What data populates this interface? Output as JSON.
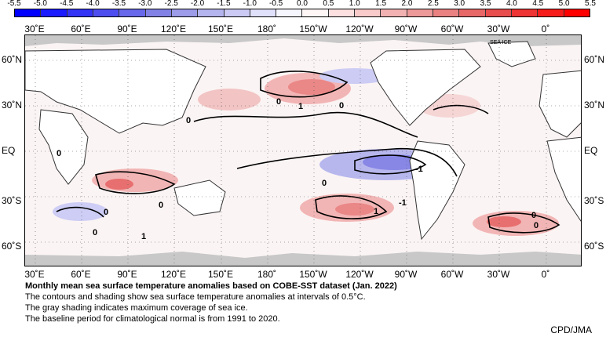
{
  "colorbar": {
    "ticks": [
      "-5.5",
      "-5.0",
      "-4.5",
      "-4.0",
      "-3.5",
      "-3.0",
      "-2.5",
      "-2.0",
      "-1.5",
      "-1.0",
      "-0.5",
      "0.0",
      "0.5",
      "1.0",
      "1.5",
      "2.0",
      "2.5",
      "3.0",
      "3.5",
      "4.0",
      "4.5",
      "5.0",
      "5.5"
    ],
    "colors": [
      "#0000ff",
      "#1b1bff",
      "#3434f6",
      "#4e4ef0",
      "#6868ea",
      "#8282e6",
      "#9c9ce8",
      "#b4b4ee",
      "#cacaf4",
      "#e0e0fa",
      "#f6f6fe",
      "#fff6f6",
      "#fde0e0",
      "#f8caca",
      "#f2b2b2",
      "#ee9a9a",
      "#ea8282",
      "#e86868",
      "#e84e4e",
      "#ee3434",
      "#f61c1c",
      "#ff0000"
    ]
  },
  "map": {
    "lon_labels_top": [
      "30˚E",
      "60˚E",
      "90˚E",
      "120˚E",
      "150˚E",
      "180˚",
      "150˚W",
      "120˚W",
      "90˚W",
      "60˚W",
      "30˚W",
      "0˚"
    ],
    "lon_labels_bottom": [
      "30˚E",
      "60˚E",
      "90˚E",
      "120˚E",
      "150˚E",
      "180˚",
      "150˚W",
      "120˚W",
      "90˚W",
      "60˚W",
      "30˚W",
      "0˚"
    ],
    "lat_labels_left": [
      "60˚N",
      "30˚N",
      "EQ",
      "30˚S",
      "60˚S"
    ],
    "lat_labels_right": [
      "60˚N",
      "30˚N",
      "EQ",
      "30˚S",
      "60˚S"
    ],
    "sea_ice_label": "SEA ICE",
    "contour_labels": [
      "0",
      "1",
      "0",
      "0",
      "0",
      "0",
      "0",
      "-1",
      "-1",
      "0",
      "1",
      "0",
      "0",
      "1",
      "0"
    ],
    "colors": {
      "land": "#ffffff",
      "sea_ice": "#c8c8c8",
      "warm": "#e8787a",
      "cool": "#7a7ae4"
    }
  },
  "caption": {
    "title": "Monthly mean sea surface temperature anomalies based on COBE-SST dataset (Jan. 2022)",
    "line1": "The contours and shading show sea surface temperature anomalies at intervals of 0.5°C.",
    "line2": "The gray shading indicates maximum coverage of sea ice.",
    "line3": "The baseline period for climatological normal is from 1991 to 2020."
  },
  "credit": "CPD/JMA"
}
